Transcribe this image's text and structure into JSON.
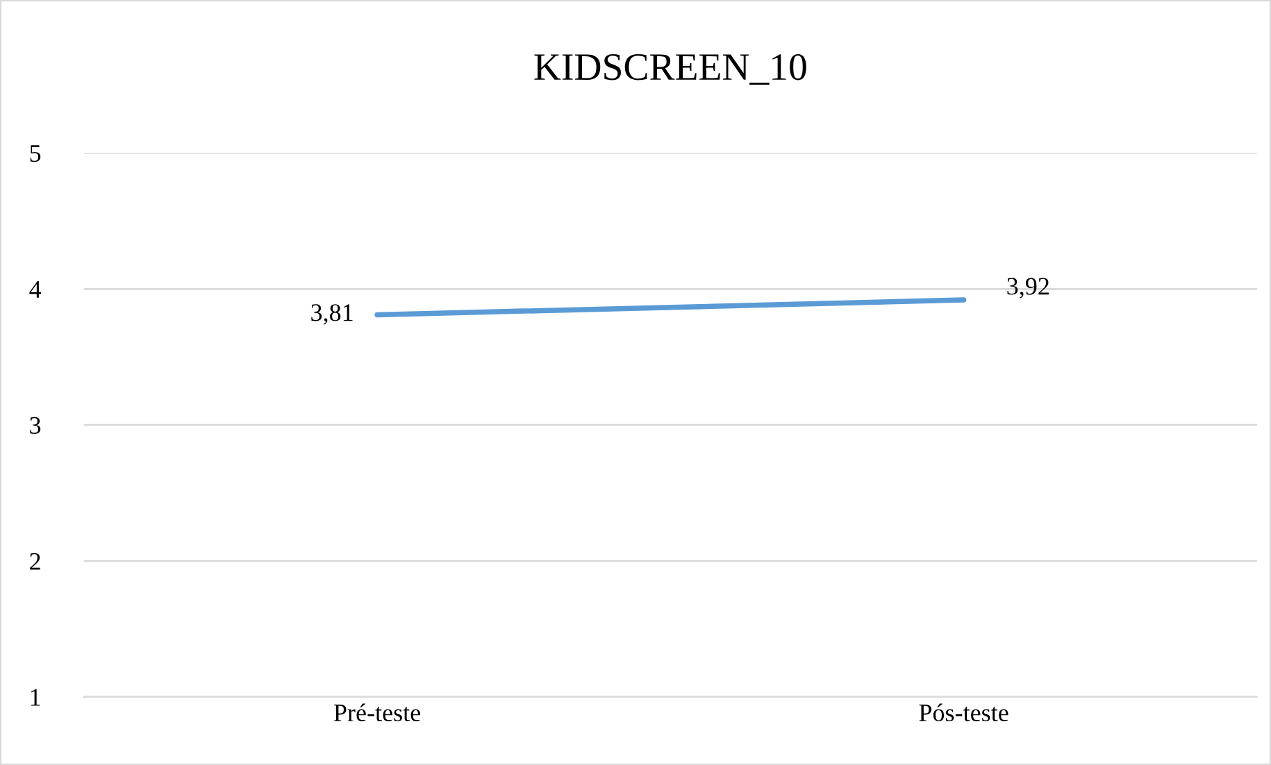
{
  "chart_data": {
    "type": "line",
    "title": "KIDSCREEN_10",
    "categories": [
      "Pré-teste",
      "Pós-teste"
    ],
    "series": [
      {
        "color": "#5b9bd5",
        "values": [
          3.81,
          3.92
        ],
        "value_labels": [
          "3,81",
          "3,92"
        ]
      }
    ],
    "ylim": [
      1,
      5
    ],
    "yticks": [
      1,
      2,
      3,
      4,
      5
    ],
    "grid": "y",
    "legend": false,
    "marker": "none",
    "line_style": "solid"
  }
}
